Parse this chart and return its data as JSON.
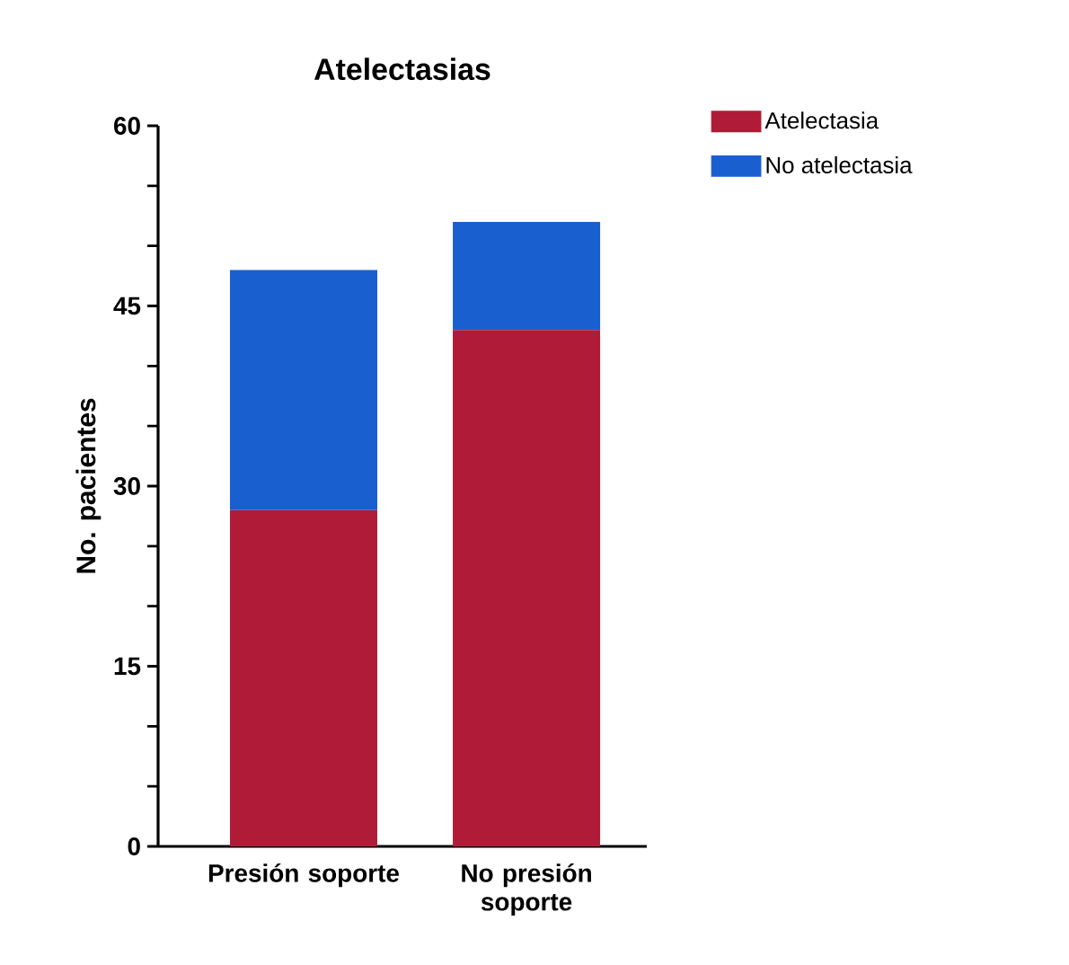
{
  "chart_data": {
    "type": "bar",
    "title": "Atelectasias",
    "ylabel": "No. pacientes",
    "categories": [
      "Presión soporte",
      "No presión soporte"
    ],
    "stacked": true,
    "series": [
      {
        "name": "Atelectasia",
        "color": "#b01c37",
        "values": [
          28,
          43
        ]
      },
      {
        "name": "No atelectasia",
        "color": "#1a5fd0",
        "values": [
          20,
          9
        ]
      }
    ],
    "ylim": [
      0,
      60
    ],
    "yticks": [
      0,
      {
        "value": 5,
        "label": null
      },
      {
        "value": 10,
        "label": null
      },
      15,
      {
        "value": 20,
        "label": null
      },
      {
        "value": 25,
        "label": null
      },
      30,
      {
        "value": 35,
        "label": null
      },
      {
        "value": 40,
        "label": null
      },
      45,
      {
        "value": 50,
        "label": null
      },
      {
        "value": 55,
        "label": null
      },
      60
    ],
    "legend": "top right"
  }
}
